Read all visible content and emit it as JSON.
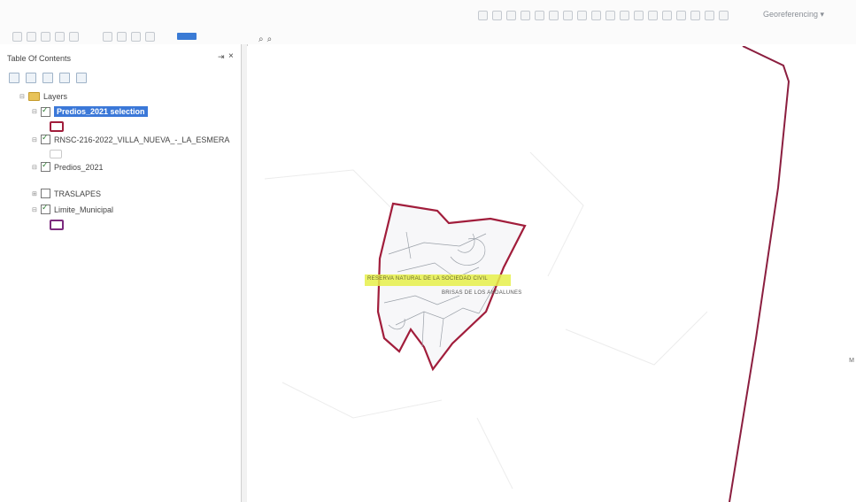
{
  "toolbar": {
    "georeferencing_label": "Georeferencing ▾"
  },
  "toc": {
    "title": "Table Of Contents",
    "pin_glyph": "⇥",
    "close_glyph": "×",
    "root_label": "Layers",
    "layers": [
      {
        "label": "Predios_2021 selection",
        "checked": true,
        "selected": true
      },
      {
        "label": "RNSC-216-2022_VILLA_NUEVA_-_LA_ESMERA",
        "checked": true,
        "selected": false
      },
      {
        "label": "Predios_2021",
        "checked": true,
        "selected": false
      },
      {
        "label": "TRASLAPES",
        "checked": false,
        "selected": false
      },
      {
        "label": "Limite_Municipal",
        "checked": true,
        "selected": false
      }
    ]
  },
  "map": {
    "label_highlight": "RESERVA NATURAL DE LA SOCIEDAD CIVIL",
    "label_secondary": "BRISAS DE LOS ANDALUNES",
    "right_edge_letter": "M"
  },
  "colors": {
    "selection_outline": "#a11d3b",
    "municipal_outline": "#7c2a7e",
    "boundary_line": "#8b1e3f",
    "highlight": "#e6f04a",
    "selected_row": "#3b78d8"
  }
}
